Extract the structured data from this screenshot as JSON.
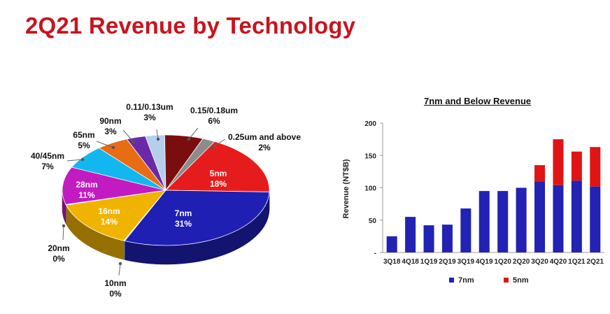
{
  "page": {
    "title": "2Q21 Revenue by Technology"
  },
  "chart_data": [
    {
      "type": "pie",
      "slices": [
        {
          "name": "5nm",
          "pct_label": "18%",
          "value": 18,
          "color": "#e61c1c"
        },
        {
          "name": "7nm",
          "pct_label": "31%",
          "value": 31,
          "color": "#1f1fb4"
        },
        {
          "name": "10nm",
          "pct_label": "0%",
          "value": 0,
          "color": "#cfcfcf"
        },
        {
          "name": "16nm",
          "pct_label": "14%",
          "value": 14,
          "color": "#f0b400"
        },
        {
          "name": "20nm",
          "pct_label": "0%",
          "value": 0,
          "color": "#d8d8d8"
        },
        {
          "name": "28nm",
          "pct_label": "11%",
          "value": 11,
          "color": "#c21bc2"
        },
        {
          "name": "40/45nm",
          "pct_label": "7%",
          "value": 7,
          "color": "#12b7f0"
        },
        {
          "name": "65nm",
          "pct_label": "5%",
          "value": 5,
          "color": "#e86c14"
        },
        {
          "name": "90nm",
          "pct_label": "3%",
          "value": 3,
          "color": "#6a2aa8"
        },
        {
          "name": "0.11/0.13um",
          "pct_label": "3%",
          "value": 3,
          "color": "#b4ceec"
        },
        {
          "name": "0.15/0.18um",
          "pct_label": "6%",
          "value": 6,
          "color": "#7a0e0e"
        },
        {
          "name": "0.25um and above",
          "pct_label": "2%",
          "value": 2,
          "color": "#8c8c8c"
        }
      ]
    },
    {
      "type": "bar",
      "stacked": true,
      "title": "7nm and Below Revenue",
      "ylabel": "Revenue (NT$B)",
      "ylim": [
        0,
        200
      ],
      "yticks": [
        "-",
        "50",
        "100",
        "150",
        "200"
      ],
      "categories": [
        "3Q18",
        "4Q18",
        "1Q19",
        "2Q19",
        "3Q19",
        "4Q19",
        "1Q20",
        "2Q20",
        "3Q20",
        "4Q20",
        "1Q21",
        "2Q21"
      ],
      "series": [
        {
          "name": "7nm",
          "color": "#2222b4",
          "values": [
            25,
            55,
            42,
            43,
            68,
            95,
            95,
            100,
            110,
            104,
            111,
            102
          ]
        },
        {
          "name": "5nm",
          "color": "#e01414",
          "values": [
            0,
            0,
            0,
            0,
            0,
            0,
            0,
            0,
            25,
            71,
            45,
            61
          ]
        }
      ],
      "legend_position": "bottom"
    }
  ]
}
